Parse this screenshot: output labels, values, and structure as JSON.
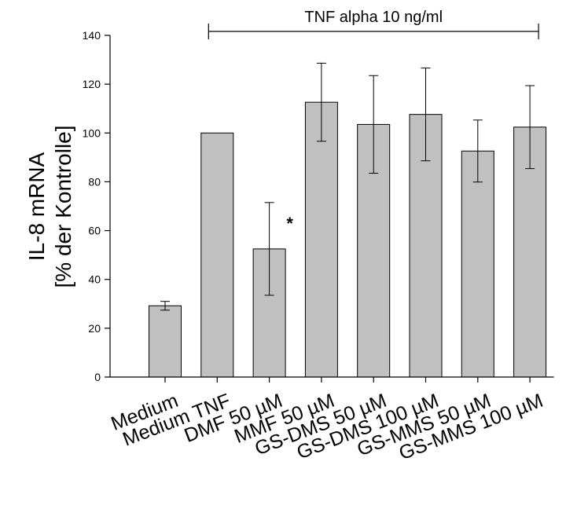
{
  "chart_data": {
    "type": "bar",
    "title": "",
    "xlabel": "",
    "ylabel_line1": "IL-8 mRNA",
    "ylabel_line2": "[% der Kontrolle]",
    "ylim": [
      0,
      140
    ],
    "yticks": [
      "0",
      "20",
      "40",
      "60",
      "80",
      "100",
      "120",
      "140"
    ],
    "categories": [
      "Medium",
      "Medium TNF",
      "DMF 50 µM",
      "MMF 50 µM",
      "GS-DMS 50 µM",
      "GS-DMS 100 µM",
      "GS-MMS 50 µM",
      "GS-MMS 100 µM"
    ],
    "values": [
      29.2,
      100,
      52.5,
      112.6,
      103.5,
      107.6,
      92.6,
      102.4
    ],
    "errors": [
      1.8,
      0,
      19,
      16,
      20,
      19,
      12.7,
      17
    ],
    "bar_color": "#c0c0c0",
    "bracket": {
      "label": "TNF alpha 10 ng/ml",
      "from_category": 1,
      "to_category": 7
    },
    "annotations": [
      {
        "category": 2,
        "text": "*"
      }
    ],
    "grid": false,
    "legend": "none"
  }
}
